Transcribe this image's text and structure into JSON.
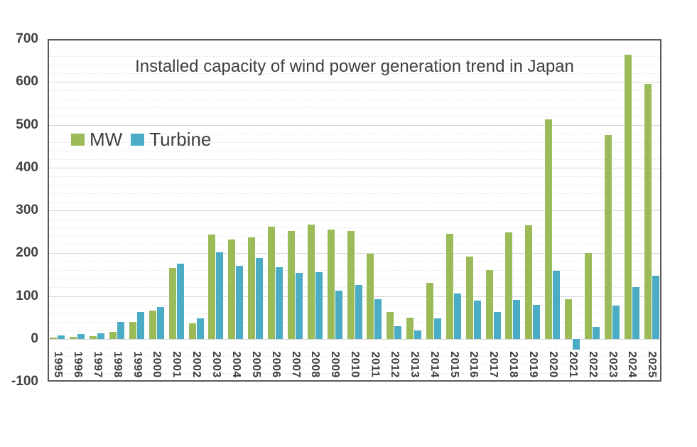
{
  "chart_data": {
    "type": "bar",
    "title": "Installed capacity of wind power generation trend in Japan",
    "xlabel": "",
    "ylabel": "",
    "ylim": [
      -100,
      700
    ],
    "yticks": [
      700,
      600,
      500,
      400,
      300,
      200,
      100,
      0,
      -100
    ],
    "minor_tick_step": 20,
    "grid": true,
    "legend_position": "inside-top-left",
    "categories": [
      "1995",
      "1996",
      "1997",
      "1998",
      "1999",
      "2000",
      "2001",
      "2002",
      "2003",
      "2004",
      "2005",
      "2006",
      "2007",
      "2008",
      "2009",
      "2010",
      "2011",
      "2012",
      "2013",
      "2014",
      "2015",
      "2016",
      "2017",
      "2018",
      "2019",
      "2020",
      "2021",
      "2022",
      "2023",
      "2024",
      "2025"
    ],
    "series": [
      {
        "name": "MW",
        "color": "#9BBB59",
        "values": [
          3,
          5,
          6,
          16,
          40,
          66,
          166,
          36,
          243,
          232,
          237,
          262,
          252,
          267,
          256,
          252,
          199,
          63,
          50,
          130,
          245,
          192,
          160,
          249,
          265,
          513,
          92,
          200,
          476,
          663,
          596
        ]
      },
      {
        "name": "Turbine",
        "color": "#4BACC6",
        "values": [
          8,
          11,
          13,
          40,
          62,
          74,
          176,
          47,
          202,
          171,
          188,
          167,
          154,
          156,
          112,
          126,
          93,
          30,
          19,
          47,
          105,
          90,
          62,
          91,
          79,
          159,
          -25,
          27,
          77,
          121,
          148
        ]
      }
    ]
  },
  "colors": {
    "plot_border": "#595959",
    "gridline_major": "#d6d6d6",
    "gridline_minor": "#e7e7e7",
    "text": "#404040",
    "background": "#ffffff"
  }
}
